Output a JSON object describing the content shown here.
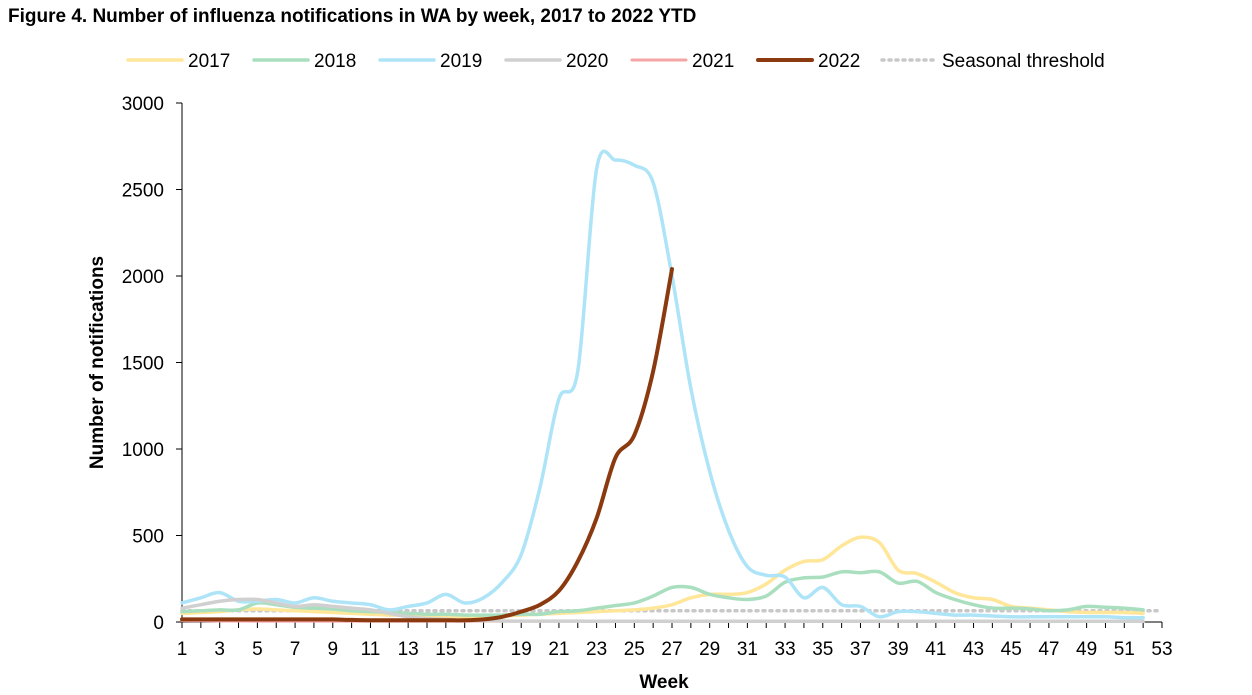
{
  "title": "Figure 4. Number of influenza notifications in WA by week, 2017 to 2022 YTD",
  "chart_data": {
    "type": "line",
    "xlabel": "Week",
    "ylabel": "Number of notifications",
    "xlim": [
      1,
      53
    ],
    "ylim": [
      0,
      3000
    ],
    "x_ticks": [
      1,
      3,
      5,
      7,
      9,
      11,
      13,
      15,
      17,
      19,
      21,
      23,
      25,
      27,
      29,
      31,
      33,
      35,
      37,
      39,
      41,
      43,
      45,
      47,
      49,
      51,
      53
    ],
    "y_ticks": [
      0,
      500,
      1000,
      1500,
      2000,
      2500,
      3000
    ],
    "legend_position": "top",
    "series": [
      {
        "name": "2017",
        "color": "#FFE699",
        "width": 3.5,
        "dash": "",
        "points": [
          [
            1,
            50
          ],
          [
            2,
            55
          ],
          [
            3,
            60
          ],
          [
            4,
            70
          ],
          [
            5,
            75
          ],
          [
            6,
            70
          ],
          [
            7,
            65
          ],
          [
            8,
            60
          ],
          [
            9,
            55
          ],
          [
            10,
            50
          ],
          [
            11,
            45
          ],
          [
            12,
            40
          ],
          [
            13,
            40
          ],
          [
            14,
            35
          ],
          [
            15,
            35
          ],
          [
            16,
            30
          ],
          [
            17,
            30
          ],
          [
            18,
            35
          ],
          [
            19,
            40
          ],
          [
            20,
            45
          ],
          [
            21,
            50
          ],
          [
            22,
            55
          ],
          [
            23,
            60
          ],
          [
            24,
            65
          ],
          [
            25,
            70
          ],
          [
            26,
            80
          ],
          [
            27,
            100
          ],
          [
            28,
            140
          ],
          [
            29,
            160
          ],
          [
            30,
            160
          ],
          [
            31,
            170
          ],
          [
            32,
            220
          ],
          [
            33,
            300
          ],
          [
            34,
            350
          ],
          [
            35,
            360
          ],
          [
            36,
            440
          ],
          [
            37,
            490
          ],
          [
            38,
            460
          ],
          [
            39,
            300
          ],
          [
            40,
            280
          ],
          [
            41,
            230
          ],
          [
            42,
            170
          ],
          [
            43,
            140
          ],
          [
            44,
            130
          ],
          [
            45,
            90
          ],
          [
            46,
            80
          ],
          [
            47,
            70
          ],
          [
            48,
            60
          ],
          [
            49,
            55
          ],
          [
            50,
            55
          ],
          [
            51,
            55
          ],
          [
            52,
            50
          ]
        ]
      },
      {
        "name": "2018",
        "color": "#A9DFBF",
        "width": 3.5,
        "dash": "",
        "points": [
          [
            1,
            60
          ],
          [
            2,
            65
          ],
          [
            3,
            70
          ],
          [
            4,
            70
          ],
          [
            5,
            110
          ],
          [
            6,
            100
          ],
          [
            7,
            85
          ],
          [
            8,
            80
          ],
          [
            9,
            75
          ],
          [
            10,
            65
          ],
          [
            11,
            60
          ],
          [
            12,
            55
          ],
          [
            13,
            50
          ],
          [
            14,
            45
          ],
          [
            15,
            45
          ],
          [
            16,
            40
          ],
          [
            17,
            40
          ],
          [
            18,
            40
          ],
          [
            19,
            45
          ],
          [
            20,
            45
          ],
          [
            21,
            60
          ],
          [
            22,
            65
          ],
          [
            23,
            80
          ],
          [
            24,
            95
          ],
          [
            25,
            110
          ],
          [
            26,
            150
          ],
          [
            27,
            200
          ],
          [
            28,
            200
          ],
          [
            29,
            160
          ],
          [
            30,
            140
          ],
          [
            31,
            130
          ],
          [
            32,
            150
          ],
          [
            33,
            230
          ],
          [
            34,
            255
          ],
          [
            35,
            260
          ],
          [
            36,
            290
          ],
          [
            37,
            285
          ],
          [
            38,
            290
          ],
          [
            39,
            225
          ],
          [
            40,
            235
          ],
          [
            41,
            170
          ],
          [
            42,
            130
          ],
          [
            43,
            100
          ],
          [
            44,
            80
          ],
          [
            45,
            80
          ],
          [
            46,
            75
          ],
          [
            47,
            65
          ],
          [
            48,
            70
          ],
          [
            49,
            90
          ],
          [
            50,
            85
          ],
          [
            51,
            80
          ],
          [
            52,
            70
          ]
        ]
      },
      {
        "name": "2019",
        "color": "#AEE4F7",
        "width": 3.5,
        "dash": "",
        "points": [
          [
            1,
            110
          ],
          [
            2,
            140
          ],
          [
            3,
            170
          ],
          [
            4,
            120
          ],
          [
            5,
            120
          ],
          [
            6,
            130
          ],
          [
            7,
            110
          ],
          [
            8,
            140
          ],
          [
            9,
            120
          ],
          [
            10,
            110
          ],
          [
            11,
            100
          ],
          [
            12,
            70
          ],
          [
            13,
            90
          ],
          [
            14,
            110
          ],
          [
            15,
            160
          ],
          [
            16,
            110
          ],
          [
            17,
            140
          ],
          [
            18,
            230
          ],
          [
            19,
            390
          ],
          [
            20,
            780
          ],
          [
            21,
            1290
          ],
          [
            22,
            1450
          ],
          [
            23,
            2620
          ],
          [
            24,
            2670
          ],
          [
            25,
            2640
          ],
          [
            26,
            2540
          ],
          [
            27,
            2000
          ],
          [
            28,
            1350
          ],
          [
            29,
            870
          ],
          [
            30,
            530
          ],
          [
            31,
            320
          ],
          [
            32,
            270
          ],
          [
            33,
            260
          ],
          [
            34,
            140
          ],
          [
            35,
            200
          ],
          [
            36,
            100
          ],
          [
            37,
            90
          ],
          [
            38,
            30
          ],
          [
            39,
            60
          ],
          [
            40,
            60
          ],
          [
            41,
            50
          ],
          [
            42,
            40
          ],
          [
            43,
            40
          ],
          [
            44,
            35
          ],
          [
            45,
            30
          ],
          [
            46,
            30
          ],
          [
            47,
            30
          ],
          [
            48,
            30
          ],
          [
            49,
            30
          ],
          [
            50,
            30
          ],
          [
            51,
            25
          ],
          [
            52,
            25
          ]
        ]
      },
      {
        "name": "2020",
        "color": "#D0D0D0",
        "width": 3.5,
        "dash": "",
        "points": [
          [
            1,
            80
          ],
          [
            2,
            100
          ],
          [
            3,
            120
          ],
          [
            4,
            130
          ],
          [
            5,
            130
          ],
          [
            6,
            110
          ],
          [
            7,
            90
          ],
          [
            8,
            100
          ],
          [
            9,
            90
          ],
          [
            10,
            80
          ],
          [
            11,
            70
          ],
          [
            12,
            50
          ],
          [
            13,
            30
          ],
          [
            14,
            20
          ],
          [
            15,
            15
          ],
          [
            16,
            10
          ],
          [
            17,
            8
          ],
          [
            18,
            6
          ],
          [
            19,
            5
          ],
          [
            20,
            5
          ],
          [
            21,
            5
          ],
          [
            22,
            5
          ],
          [
            23,
            4
          ],
          [
            24,
            4
          ],
          [
            25,
            4
          ],
          [
            26,
            4
          ],
          [
            27,
            4
          ],
          [
            28,
            4
          ],
          [
            29,
            4
          ],
          [
            30,
            4
          ],
          [
            31,
            4
          ],
          [
            32,
            4
          ],
          [
            33,
            4
          ],
          [
            34,
            4
          ],
          [
            35,
            4
          ],
          [
            36,
            4
          ],
          [
            37,
            4
          ],
          [
            38,
            4
          ],
          [
            39,
            4
          ],
          [
            40,
            4
          ],
          [
            41,
            4
          ],
          [
            42,
            4
          ],
          [
            43,
            4
          ],
          [
            44,
            4
          ],
          [
            45,
            4
          ],
          [
            46,
            4
          ],
          [
            47,
            4
          ],
          [
            48,
            4
          ],
          [
            49,
            4
          ],
          [
            50,
            4
          ],
          [
            51,
            4
          ],
          [
            52,
            4
          ]
        ]
      },
      {
        "name": "2021",
        "color": "#F4A6A6",
        "width": 3,
        "dash": "",
        "points": [
          [
            1,
            8
          ],
          [
            2,
            7
          ],
          [
            3,
            6
          ],
          [
            4,
            6
          ],
          [
            5,
            5
          ],
          [
            6,
            5
          ],
          [
            7,
            5
          ],
          [
            8,
            5
          ],
          [
            9,
            5
          ],
          [
            10,
            5
          ],
          [
            11,
            5
          ],
          [
            12,
            5
          ],
          [
            13,
            5
          ],
          [
            14,
            5
          ],
          [
            15,
            5
          ],
          [
            16,
            5
          ],
          [
            17,
            5
          ],
          [
            18,
            5
          ],
          [
            19,
            5
          ],
          [
            20,
            5
          ],
          [
            21,
            5
          ],
          [
            22,
            5
          ],
          [
            23,
            5
          ],
          [
            24,
            5
          ],
          [
            25,
            5
          ],
          [
            26,
            5
          ],
          [
            27,
            5
          ],
          [
            28,
            5
          ],
          [
            29,
            5
          ],
          [
            30,
            5
          ],
          [
            31,
            5
          ],
          [
            32,
            5
          ],
          [
            33,
            5
          ],
          [
            34,
            5
          ],
          [
            35,
            5
          ],
          [
            36,
            5
          ],
          [
            37,
            5
          ],
          [
            38,
            5
          ],
          [
            39,
            5
          ],
          [
            40,
            5
          ],
          [
            41,
            5
          ],
          [
            42,
            5
          ],
          [
            43,
            5
          ],
          [
            44,
            5
          ],
          [
            45,
            5
          ],
          [
            46,
            5
          ],
          [
            47,
            5
          ],
          [
            48,
            5
          ],
          [
            49,
            5
          ],
          [
            50,
            5
          ],
          [
            51,
            5
          ],
          [
            52,
            5
          ]
        ]
      },
      {
        "name": "2022",
        "color": "#8B3A0F",
        "width": 4,
        "dash": "",
        "points": [
          [
            1,
            15
          ],
          [
            2,
            15
          ],
          [
            3,
            15
          ],
          [
            4,
            15
          ],
          [
            5,
            15
          ],
          [
            6,
            15
          ],
          [
            7,
            15
          ],
          [
            8,
            15
          ],
          [
            9,
            15
          ],
          [
            10,
            12
          ],
          [
            11,
            10
          ],
          [
            12,
            10
          ],
          [
            13,
            10
          ],
          [
            14,
            10
          ],
          [
            15,
            10
          ],
          [
            16,
            10
          ],
          [
            17,
            15
          ],
          [
            18,
            30
          ],
          [
            19,
            60
          ],
          [
            20,
            100
          ],
          [
            21,
            180
          ],
          [
            22,
            350
          ],
          [
            23,
            600
          ],
          [
            24,
            950
          ],
          [
            25,
            1080
          ],
          [
            26,
            1450
          ],
          [
            27,
            2040
          ]
        ]
      },
      {
        "name": "Seasonal threshold",
        "color": "#C8C8C8",
        "width": 3.5,
        "dash": "2 5",
        "points": [
          [
            1,
            65
          ],
          [
            53,
            65
          ]
        ]
      }
    ]
  }
}
